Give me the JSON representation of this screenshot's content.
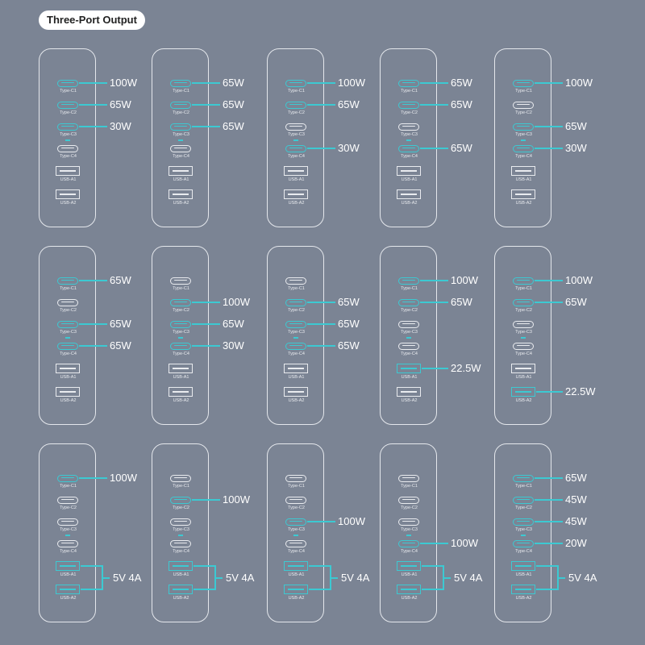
{
  "title": "Three-Port Output",
  "colors": {
    "background": "#7b8494",
    "accent": "#3cc9d2",
    "outline": "#e4e7ec"
  },
  "port_names": [
    "Type-C1",
    "Type-C2",
    "Type-C3",
    "Type-C4",
    "USB-A1",
    "USB-A2"
  ],
  "rows": [
    [
      {
        "outputs": {
          "Type-C1": "100W",
          "Type-C2": "65W",
          "Type-C3": "30W"
        }
      },
      {
        "outputs": {
          "Type-C1": "65W",
          "Type-C2": "65W",
          "Type-C3": "65W"
        }
      },
      {
        "outputs": {
          "Type-C1": "100W",
          "Type-C2": "65W",
          "Type-C4": "30W"
        }
      },
      {
        "outputs": {
          "Type-C1": "65W",
          "Type-C2": "65W",
          "Type-C4": "65W"
        }
      },
      {
        "outputs": {
          "Type-C1": "100W",
          "Type-C3": "65W",
          "Type-C4": "30W"
        }
      }
    ],
    [
      {
        "outputs": {
          "Type-C1": "65W",
          "Type-C3": "65W",
          "Type-C4": "65W"
        }
      },
      {
        "outputs": {
          "Type-C2": "100W",
          "Type-C3": "65W",
          "Type-C4": "30W"
        }
      },
      {
        "outputs": {
          "Type-C2": "65W",
          "Type-C3": "65W",
          "Type-C4": "65W"
        }
      },
      {
        "outputs": {
          "Type-C1": "100W",
          "Type-C2": "65W",
          "USB-A1": "22.5W"
        }
      },
      {
        "outputs": {
          "Type-C1": "100W",
          "Type-C2": "65W",
          "USB-A2": "22.5W"
        }
      }
    ],
    [
      {
        "outputs": {
          "Type-C1": "100W"
        },
        "usb_a_shared": "5V 4A"
      },
      {
        "outputs": {
          "Type-C2": "100W"
        },
        "usb_a_shared": "5V 4A"
      },
      {
        "outputs": {
          "Type-C3": "100W"
        },
        "usb_a_shared": "5V 4A"
      },
      {
        "outputs": {
          "Type-C4": "100W"
        },
        "usb_a_shared": "5V 4A"
      },
      {
        "outputs": {
          "Type-C1": "65W",
          "Type-C2": "45W",
          "Type-C3": "45W",
          "Type-C4": "20W"
        },
        "usb_a_shared": "5V 4A"
      }
    ]
  ]
}
